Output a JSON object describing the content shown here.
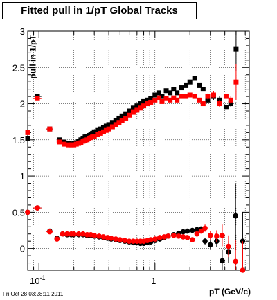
{
  "title": "Fitted pull in 1/pT  Global Tracks",
  "timestamp": "Fri Oct 28 03:28:11 2011",
  "chart_data": {
    "type": "scatter",
    "title": "Fitted pull in 1/pT  Global Tracks",
    "xlabel": "pT (GeV/c)",
    "ylabel": "pull in 1/pT",
    "xscale": "log",
    "xlim": [
      0.08,
      6.5
    ],
    "ylim": [
      -0.3,
      3.0
    ],
    "grid": true,
    "x_tick_labels": [
      {
        "value": 0.1,
        "label": "10",
        "sup": "-1"
      },
      {
        "value": 1,
        "label": "1",
        "sup": ""
      }
    ],
    "y_tick_labels": [
      "0",
      "0.5",
      "1",
      "1.5",
      "2",
      "2.5",
      "3"
    ],
    "series": [
      {
        "color": "#000000",
        "marker": "square",
        "points": [
          [
            0.08,
            1.52,
            0,
            0.02
          ],
          [
            0.097,
            2.1,
            0.008,
            0.03
          ],
          [
            0.124,
            1.65,
            0.008,
            0.02
          ],
          [
            0.15,
            1.5,
            0.008,
            0.02
          ],
          [
            0.165,
            1.47,
            0.006,
            0.02
          ],
          [
            0.18,
            1.45,
            0.006,
            0.02
          ],
          [
            0.19,
            1.44,
            0.005,
            0
          ],
          [
            0.2,
            1.45,
            0.005,
            0
          ],
          [
            0.21,
            1.46,
            0.005,
            0
          ],
          [
            0.22,
            1.48,
            0.005,
            0
          ],
          [
            0.23,
            1.5,
            0.005,
            0
          ],
          [
            0.24,
            1.52,
            0.005,
            0
          ],
          [
            0.25,
            1.54,
            0.005,
            0
          ],
          [
            0.26,
            1.55,
            0.005,
            0
          ],
          [
            0.27,
            1.56,
            0.005,
            0
          ],
          [
            0.28,
            1.58,
            0.005,
            0
          ],
          [
            0.29,
            1.59,
            0.005,
            0
          ],
          [
            0.3,
            1.61,
            0.005,
            0
          ],
          [
            0.32,
            1.63,
            0.005,
            0
          ],
          [
            0.34,
            1.65,
            0.005,
            0
          ],
          [
            0.36,
            1.67,
            0.005,
            0
          ],
          [
            0.38,
            1.69,
            0.005,
            0
          ],
          [
            0.4,
            1.71,
            0.005,
            0
          ],
          [
            0.43,
            1.74,
            0.005,
            0
          ],
          [
            0.46,
            1.77,
            0.005,
            0
          ],
          [
            0.49,
            1.8,
            0.005,
            0
          ],
          [
            0.52,
            1.83,
            0.005,
            0
          ],
          [
            0.56,
            1.86,
            0.005,
            0
          ],
          [
            0.6,
            1.9,
            0.005,
            0
          ],
          [
            0.65,
            1.94,
            0.005,
            0
          ],
          [
            0.7,
            1.97,
            0.005,
            0
          ],
          [
            0.75,
            2.0,
            0.005,
            0
          ],
          [
            0.8,
            2.03,
            0.005,
            0
          ],
          [
            0.86,
            2.05,
            0.005,
            0
          ],
          [
            0.92,
            2.07,
            0.005,
            0
          ],
          [
            1.0,
            2.12,
            0.01,
            0
          ],
          [
            1.08,
            2.15,
            0.01,
            0
          ],
          [
            1.15,
            2.1,
            0.01,
            0
          ],
          [
            1.25,
            2.18,
            0.01,
            0
          ],
          [
            1.35,
            2.15,
            0.01,
            0
          ],
          [
            1.45,
            2.2,
            0.01,
            0
          ],
          [
            1.55,
            2.15,
            0.01,
            0
          ],
          [
            1.7,
            2.22,
            0.01,
            0
          ],
          [
            1.85,
            2.25,
            0.01,
            0
          ],
          [
            2.0,
            2.3,
            0.01,
            0
          ],
          [
            2.2,
            2.35,
            0.01,
            0
          ],
          [
            2.4,
            2.25,
            0.01,
            0
          ],
          [
            2.6,
            2.2,
            0.01,
            0
          ],
          [
            2.85,
            2.05,
            0.02,
            0.04
          ],
          [
            3.2,
            2.1,
            0.02,
            0.05
          ],
          [
            3.6,
            2.05,
            0.02,
            0.05
          ],
          [
            4.1,
            1.95,
            0.02,
            0.06
          ],
          [
            4.5,
            2.0,
            0.02,
            0.05
          ],
          [
            5.0,
            2.75,
            0.02,
            0.3
          ],
          [
            0.08,
            0.5,
            0,
            0.02
          ],
          [
            0.097,
            0.56,
            0.008,
            0.03
          ],
          [
            0.124,
            0.24,
            0.008,
            0.02
          ],
          [
            0.143,
            0.14,
            0.006,
            0
          ],
          [
            0.16,
            0.2,
            0.005,
            0
          ],
          [
            0.175,
            0.19,
            0.005,
            0
          ],
          [
            0.19,
            0.19,
            0.005,
            0
          ],
          [
            0.2,
            0.19,
            0.005,
            0
          ],
          [
            0.22,
            0.19,
            0.005,
            0
          ],
          [
            0.24,
            0.19,
            0.005,
            0
          ],
          [
            0.26,
            0.18,
            0.005,
            0
          ],
          [
            0.28,
            0.18,
            0.005,
            0
          ],
          [
            0.3,
            0.17,
            0.005,
            0
          ],
          [
            0.33,
            0.16,
            0.005,
            0
          ],
          [
            0.36,
            0.15,
            0.005,
            0
          ],
          [
            0.39,
            0.14,
            0.005,
            0
          ],
          [
            0.42,
            0.13,
            0.005,
            0
          ],
          [
            0.46,
            0.12,
            0.005,
            0
          ],
          [
            0.5,
            0.11,
            0.005,
            0
          ],
          [
            0.55,
            0.1,
            0.005,
            0
          ],
          [
            0.6,
            0.09,
            0.005,
            0
          ],
          [
            0.65,
            0.08,
            0.005,
            0
          ],
          [
            0.7,
            0.08,
            0.005,
            0
          ],
          [
            0.75,
            0.07,
            0.005,
            0
          ],
          [
            0.8,
            0.07,
            0.005,
            0
          ],
          [
            0.86,
            0.08,
            0.005,
            0
          ],
          [
            0.92,
            0.09,
            0.005,
            0
          ],
          [
            1.0,
            0.11,
            0.01,
            0
          ],
          [
            1.1,
            0.13,
            0.01,
            0
          ],
          [
            1.2,
            0.15,
            0.01,
            0
          ],
          [
            1.3,
            0.17,
            0.01,
            0
          ],
          [
            1.45,
            0.19,
            0.01,
            0
          ],
          [
            1.6,
            0.21,
            0.01,
            0
          ],
          [
            1.75,
            0.23,
            0.01,
            0
          ],
          [
            1.9,
            0.24,
            0.01,
            0
          ],
          [
            2.1,
            0.25,
            0.01,
            0
          ],
          [
            2.3,
            0.26,
            0.01,
            0
          ],
          [
            2.5,
            0.27,
            0.01,
            0
          ],
          [
            2.7,
            0.1,
            0.02,
            0.05
          ],
          [
            3.0,
            0.05,
            0.02,
            0.06
          ],
          [
            3.4,
            0.1,
            0.02,
            0.08
          ],
          [
            3.8,
            -0.17,
            0.02,
            0.15
          ],
          [
            4.3,
            -0.05,
            0.02,
            0.15
          ],
          [
            4.95,
            0.45,
            0.02,
            0.45
          ],
          [
            5.7,
            0.1,
            0.02,
            0.4
          ]
        ]
      },
      {
        "color": "#ff0000",
        "marker": "square",
        "points": [
          [
            0.08,
            1.6,
            0,
            0.02
          ],
          [
            0.097,
            2.07,
            0.008,
            0.03
          ],
          [
            0.124,
            1.65,
            0.008,
            0.02
          ],
          [
            0.15,
            1.47,
            0.008,
            0.02
          ],
          [
            0.165,
            1.44,
            0.006,
            0.02
          ],
          [
            0.18,
            1.43,
            0.006,
            0.02
          ],
          [
            0.19,
            1.43,
            0.005,
            0
          ],
          [
            0.2,
            1.43,
            0.005,
            0
          ],
          [
            0.21,
            1.44,
            0.005,
            0
          ],
          [
            0.22,
            1.45,
            0.005,
            0
          ],
          [
            0.23,
            1.46,
            0.005,
            0
          ],
          [
            0.24,
            1.48,
            0.005,
            0
          ],
          [
            0.25,
            1.49,
            0.005,
            0
          ],
          [
            0.26,
            1.5,
            0.005,
            0
          ],
          [
            0.27,
            1.52,
            0.005,
            0
          ],
          [
            0.28,
            1.53,
            0.005,
            0
          ],
          [
            0.29,
            1.54,
            0.005,
            0
          ],
          [
            0.3,
            1.55,
            0.005,
            0
          ],
          [
            0.32,
            1.57,
            0.005,
            0
          ],
          [
            0.34,
            1.59,
            0.005,
            0
          ],
          [
            0.36,
            1.61,
            0.005,
            0
          ],
          [
            0.38,
            1.63,
            0.005,
            0
          ],
          [
            0.4,
            1.65,
            0.005,
            0
          ],
          [
            0.43,
            1.68,
            0.005,
            0
          ],
          [
            0.46,
            1.71,
            0.005,
            0
          ],
          [
            0.49,
            1.74,
            0.005,
            0
          ],
          [
            0.52,
            1.77,
            0.005,
            0
          ],
          [
            0.56,
            1.8,
            0.005,
            0
          ],
          [
            0.6,
            1.84,
            0.005,
            0
          ],
          [
            0.65,
            1.88,
            0.005,
            0
          ],
          [
            0.7,
            1.91,
            0.005,
            0
          ],
          [
            0.75,
            1.94,
            0.005,
            0
          ],
          [
            0.8,
            1.97,
            0.005,
            0
          ],
          [
            0.86,
            2.0,
            0.005,
            0
          ],
          [
            0.92,
            2.02,
            0.005,
            0
          ],
          [
            1.0,
            2.05,
            0.01,
            0
          ],
          [
            1.08,
            2.08,
            0.01,
            0
          ],
          [
            1.15,
            2.03,
            0.01,
            0
          ],
          [
            1.25,
            2.07,
            0.01,
            0
          ],
          [
            1.35,
            2.05,
            0.01,
            0
          ],
          [
            1.45,
            2.08,
            0.01,
            0
          ],
          [
            1.55,
            2.05,
            0.01,
            0
          ],
          [
            1.7,
            2.1,
            0.01,
            0
          ],
          [
            1.85,
            2.1,
            0.01,
            0
          ],
          [
            2.0,
            2.12,
            0.01,
            0
          ],
          [
            2.2,
            2.1,
            0.01,
            0
          ],
          [
            2.4,
            2.05,
            0.01,
            0
          ],
          [
            2.6,
            2.0,
            0.01,
            0
          ],
          [
            2.85,
            2.1,
            0.02,
            0.04
          ],
          [
            3.2,
            2.12,
            0.02,
            0.05
          ],
          [
            3.6,
            2.0,
            0.02,
            0.05
          ],
          [
            4.1,
            2.1,
            0.02,
            0.06
          ],
          [
            4.5,
            2.05,
            0.02,
            0.05
          ],
          [
            5.0,
            2.3,
            0.02,
            0.25
          ],
          [
            0.08,
            0.5,
            0,
            0.02
          ],
          [
            0.097,
            0.56,
            0.008,
            0.03
          ],
          [
            0.124,
            0.23,
            0.008,
            0.02
          ],
          [
            0.143,
            0.13,
            0.006,
            0
          ],
          [
            0.16,
            0.2,
            0.005,
            0
          ],
          [
            0.175,
            0.2,
            0.005,
            0
          ],
          [
            0.19,
            0.2,
            0.005,
            0
          ],
          [
            0.2,
            0.2,
            0.005,
            0
          ],
          [
            0.22,
            0.2,
            0.005,
            0
          ],
          [
            0.24,
            0.2,
            0.005,
            0
          ],
          [
            0.26,
            0.19,
            0.005,
            0
          ],
          [
            0.28,
            0.19,
            0.005,
            0
          ],
          [
            0.3,
            0.18,
            0.005,
            0
          ],
          [
            0.33,
            0.17,
            0.005,
            0
          ],
          [
            0.36,
            0.16,
            0.005,
            0
          ],
          [
            0.39,
            0.15,
            0.005,
            0
          ],
          [
            0.42,
            0.14,
            0.005,
            0
          ],
          [
            0.46,
            0.13,
            0.005,
            0
          ],
          [
            0.5,
            0.12,
            0.005,
            0
          ],
          [
            0.55,
            0.11,
            0.005,
            0
          ],
          [
            0.6,
            0.1,
            0.005,
            0
          ],
          [
            0.65,
            0.1,
            0.005,
            0
          ],
          [
            0.7,
            0.1,
            0.005,
            0
          ],
          [
            0.75,
            0.1,
            0.005,
            0
          ],
          [
            0.8,
            0.1,
            0.005,
            0
          ],
          [
            0.86,
            0.11,
            0.005,
            0
          ],
          [
            0.92,
            0.12,
            0.005,
            0
          ],
          [
            1.0,
            0.13,
            0.01,
            0
          ],
          [
            1.1,
            0.15,
            0.01,
            0
          ],
          [
            1.2,
            0.16,
            0.01,
            0
          ],
          [
            1.3,
            0.17,
            0.01,
            0
          ],
          [
            1.45,
            0.18,
            0.01,
            0
          ],
          [
            1.6,
            0.17,
            0.01,
            0
          ],
          [
            1.75,
            0.16,
            0.01,
            0
          ],
          [
            1.9,
            0.15,
            0.01,
            0
          ],
          [
            2.1,
            0.12,
            0.01,
            0
          ],
          [
            2.3,
            0.2,
            0.01,
            0
          ],
          [
            2.5,
            0.24,
            0.01,
            0
          ],
          [
            2.7,
            0.28,
            0.02,
            0.05
          ],
          [
            3.0,
            0.18,
            0.02,
            0.06
          ],
          [
            3.4,
            0.17,
            0.02,
            0.08
          ],
          [
            3.8,
            0.18,
            0.02,
            0.15
          ],
          [
            4.3,
            0.03,
            0.02,
            0.15
          ],
          [
            4.95,
            -0.18,
            0.02,
            0.3
          ],
          [
            5.7,
            -0.3,
            0.02,
            0.4
          ]
        ]
      }
    ]
  }
}
